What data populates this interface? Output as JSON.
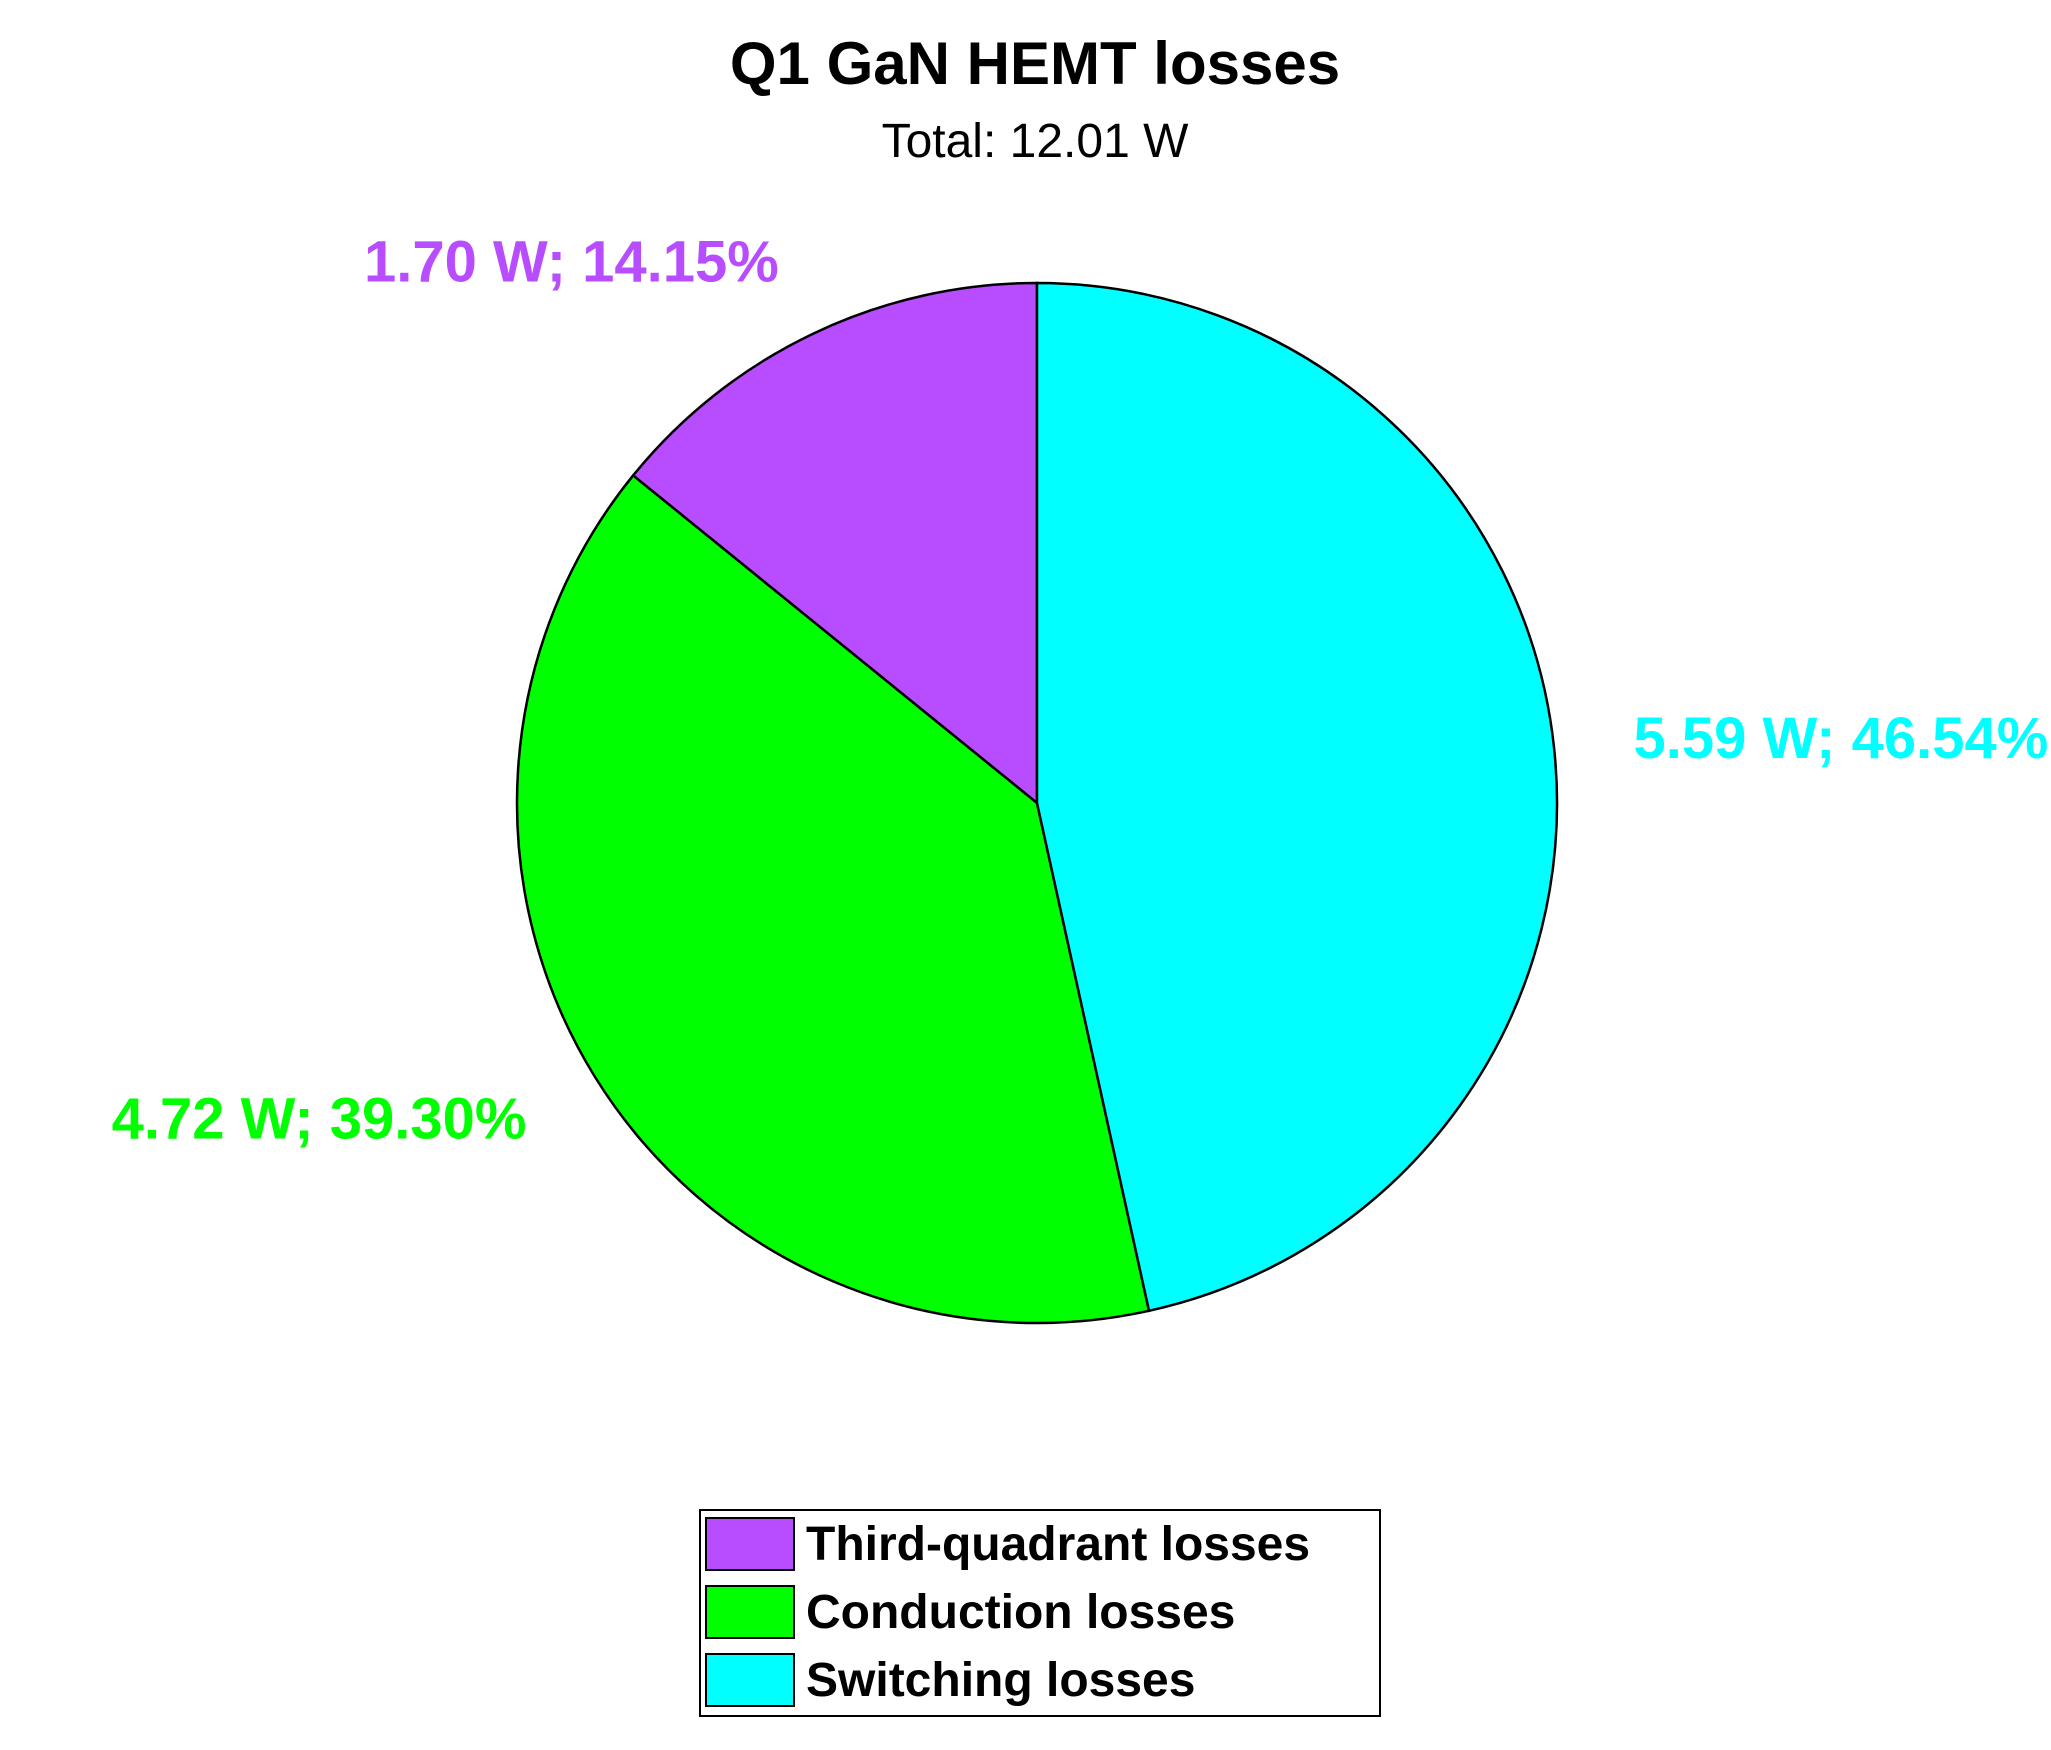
{
  "chart_data": {
    "type": "pie",
    "title": "Q1 GaN HEMT losses",
    "subtitle": "Total: 12.01 W",
    "start": "top",
    "direction": "counterclockwise",
    "slices": [
      {
        "name": "Third-quadrant losses",
        "value": 1.7,
        "percent": 14.15,
        "label": "1.70 W; 14.15%",
        "color": "#b84dff"
      },
      {
        "name": "Conduction losses",
        "value": 4.72,
        "percent": 39.3,
        "label": "4.72 W; 39.30%",
        "color": "#00ff00"
      },
      {
        "name": "Switching losses",
        "value": 5.59,
        "percent": 46.54,
        "label": "5.59 W; 46.54%",
        "color": "#00ffff"
      }
    ],
    "legend_position": "bottom"
  }
}
